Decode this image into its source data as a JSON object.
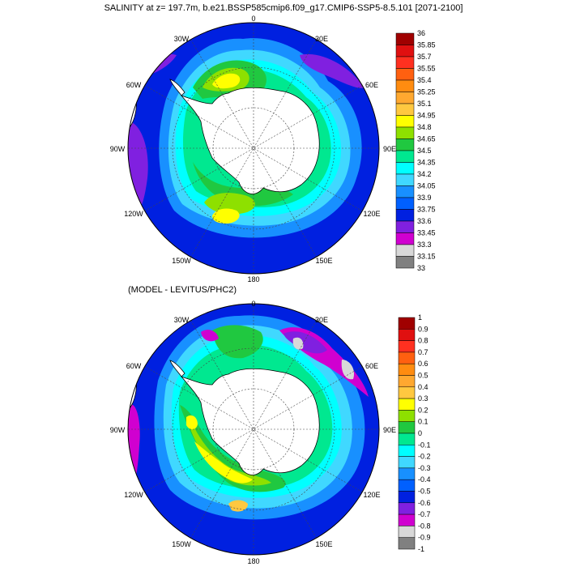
{
  "figure": {
    "title": "SALINITY at z= 197.7m, b.e21.BSSP585cmip6.f09_g17.CMIP6-SSP5-8.5.101 [2071-2100]",
    "subtitle": "(MODEL - LEVITUS/PHC2)"
  },
  "map_labels": {
    "top": {
      "lon_0": "0",
      "lon_30w": "30W",
      "lon_30e": "30E",
      "lon_60w": "60W",
      "lon_60e": "60E",
      "lon_90w": "90W",
      "lon_90e": "90E",
      "lon_120w": "120W",
      "lon_120e": "120E",
      "lon_150w": "150W",
      "lon_150e": "150E",
      "lon_180": "180"
    },
    "bottom": {
      "lon_0": "0",
      "lon_30w": "30W",
      "lon_30e": "30E",
      "lon_60w": "60W",
      "lon_60e": "60E",
      "lon_90w": "90W",
      "lon_90e": "90E",
      "lon_120w": "120W",
      "lon_120e": "120E",
      "lon_150w": "150W",
      "lon_150e": "150E",
      "lon_180": "180"
    }
  },
  "colorbar_top": {
    "labels": [
      "36",
      "35.85",
      "35.7",
      "35.55",
      "35.4",
      "35.25",
      "35.1",
      "34.95",
      "34.8",
      "34.65",
      "34.5",
      "34.35",
      "34.2",
      "34.05",
      "33.9",
      "33.75",
      "33.6",
      "33.45",
      "33.3",
      "33.15",
      "33"
    ],
    "colors": [
      "#a00000",
      "#e01010",
      "#ff3020",
      "#ff6010",
      "#ff8c10",
      "#ffa830",
      "#ffc840",
      "#ffff00",
      "#8ee000",
      "#20c840",
      "#00e890",
      "#00ffff",
      "#40d8ff",
      "#1890ff",
      "#0060ff",
      "#0020e0",
      "#8020e0",
      "#d000d0",
      "#d8d8d8",
      "#808080"
    ]
  },
  "colorbar_bottom": {
    "labels": [
      "1",
      "0.9",
      "0.8",
      "0.7",
      "0.6",
      "0.5",
      "0.4",
      "0.3",
      "0.2",
      "0.1",
      "0",
      "-0.1",
      "-0.2",
      "-0.3",
      "-0.4",
      "-0.5",
      "-0.6",
      "-0.7",
      "-0.8",
      "-0.9",
      "-1"
    ],
    "colors": [
      "#a00000",
      "#e01010",
      "#ff3020",
      "#ff6010",
      "#ff8c10",
      "#ffa830",
      "#ffc840",
      "#ffff00",
      "#8ee000",
      "#20c840",
      "#00e890",
      "#00ffff",
      "#40d8ff",
      "#1890ff",
      "#0060ff",
      "#0020e0",
      "#8020e0",
      "#d000d0",
      "#d8d8d8",
      "#808080"
    ]
  }
}
